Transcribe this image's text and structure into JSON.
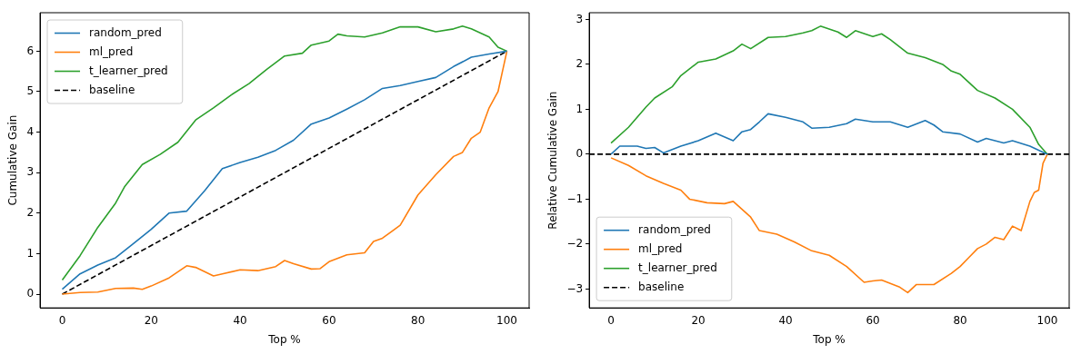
{
  "chart_data": [
    {
      "type": "line",
      "xlabel": "Top %",
      "ylabel": "Cumulative Gain",
      "xlim": [
        -5,
        105
      ],
      "ylim": [
        -0.34,
        6.95
      ],
      "xticks": [
        0,
        20,
        40,
        60,
        80,
        100
      ],
      "yticks": [
        0,
        1,
        2,
        3,
        4,
        5,
        6
      ],
      "grid": false,
      "legend": "top left",
      "marker": "none",
      "series": [
        {
          "name": "random_pred",
          "color": "#1f77b4",
          "x": [
            0,
            4,
            8,
            12,
            16,
            20,
            24,
            28,
            32,
            36,
            40,
            44,
            48,
            52,
            56,
            60,
            64,
            68,
            72,
            76,
            80,
            84,
            88,
            92,
            96,
            100
          ],
          "values": [
            0.12,
            0.5,
            0.72,
            0.9,
            1.25,
            1.6,
            2.0,
            2.05,
            2.55,
            3.1,
            3.25,
            3.38,
            3.55,
            3.8,
            4.2,
            4.35,
            4.57,
            4.8,
            5.08,
            5.15,
            5.25,
            5.35,
            5.62,
            5.85,
            5.93,
            6.0
          ]
        },
        {
          "name": "ml_pred",
          "color": "#ff7f0e",
          "x": [
            0,
            4,
            8,
            12,
            16,
            18,
            20,
            24,
            28,
            30,
            34,
            36,
            40,
            44,
            48,
            50,
            52,
            56,
            58,
            60,
            64,
            68,
            70,
            72,
            76,
            80,
            84,
            88,
            90,
            92,
            94,
            96,
            98,
            99,
            100
          ],
          "values": [
            0.0,
            0.04,
            0.05,
            0.14,
            0.15,
            0.12,
            0.2,
            0.4,
            0.7,
            0.66,
            0.45,
            0.5,
            0.6,
            0.58,
            0.68,
            0.83,
            0.75,
            0.62,
            0.63,
            0.8,
            0.97,
            1.02,
            1.3,
            1.38,
            1.7,
            2.45,
            2.95,
            3.4,
            3.5,
            3.85,
            4.0,
            4.6,
            5.0,
            5.5,
            6.0
          ]
        },
        {
          "name": "t_learner_pred",
          "color": "#2ca02c",
          "x": [
            0,
            4,
            8,
            12,
            14,
            18,
            22,
            26,
            30,
            34,
            38,
            42,
            46,
            50,
            54,
            56,
            60,
            62,
            64,
            68,
            72,
            76,
            80,
            84,
            88,
            90,
            92,
            96,
            98,
            100
          ],
          "values": [
            0.35,
            0.95,
            1.65,
            2.25,
            2.65,
            3.2,
            3.45,
            3.75,
            4.3,
            4.6,
            4.92,
            5.2,
            5.55,
            5.88,
            5.95,
            6.15,
            6.25,
            6.42,
            6.38,
            6.35,
            6.45,
            6.6,
            6.6,
            6.48,
            6.55,
            6.62,
            6.55,
            6.35,
            6.1,
            6.0
          ]
        },
        {
          "name": "baseline",
          "color": "#000000",
          "line_style": "dashed",
          "x": [
            0,
            100
          ],
          "values": [
            0,
            6
          ]
        }
      ]
    },
    {
      "type": "line",
      "xlabel": "Top %",
      "ylabel": "Relative Cumulative Gain",
      "xlim": [
        -5,
        105
      ],
      "ylim": [
        -3.42,
        3.15
      ],
      "xticks": [
        0,
        20,
        40,
        60,
        80,
        100
      ],
      "yticks": [
        -3,
        -2,
        -1,
        0,
        1,
        2,
        3
      ],
      "grid": false,
      "legend": "bottom left",
      "marker": "none",
      "series": [
        {
          "name": "random_pred",
          "color": "#1f77b4",
          "x": [
            0,
            2,
            6,
            8,
            10,
            12,
            16,
            20,
            24,
            28,
            30,
            32,
            34,
            36,
            40,
            44,
            46,
            50,
            54,
            56,
            60,
            64,
            68,
            72,
            74,
            76,
            80,
            84,
            86,
            90,
            92,
            96,
            100
          ],
          "values": [
            0.0,
            0.18,
            0.18,
            0.13,
            0.15,
            0.03,
            0.18,
            0.3,
            0.47,
            0.3,
            0.5,
            0.55,
            0.72,
            0.9,
            0.82,
            0.72,
            0.58,
            0.6,
            0.68,
            0.78,
            0.72,
            0.72,
            0.6,
            0.75,
            0.65,
            0.5,
            0.45,
            0.27,
            0.35,
            0.25,
            0.3,
            0.18,
            0.0
          ]
        },
        {
          "name": "ml_pred",
          "color": "#ff7f0e",
          "x": [
            0,
            4,
            8,
            12,
            16,
            18,
            22,
            26,
            28,
            32,
            34,
            38,
            42,
            46,
            50,
            54,
            58,
            60,
            62,
            66,
            68,
            70,
            74,
            78,
            80,
            82,
            84,
            86,
            88,
            90,
            92,
            94,
            96,
            97,
            98,
            99,
            100
          ],
          "values": [
            -0.08,
            -0.25,
            -0.48,
            -0.65,
            -0.8,
            -1.0,
            -1.08,
            -1.1,
            -1.05,
            -1.4,
            -1.7,
            -1.78,
            -1.95,
            -2.15,
            -2.25,
            -2.5,
            -2.85,
            -2.82,
            -2.8,
            -2.95,
            -3.08,
            -2.9,
            -2.9,
            -2.65,
            -2.5,
            -2.3,
            -2.1,
            -2.0,
            -1.85,
            -1.9,
            -1.6,
            -1.7,
            -1.05,
            -0.85,
            -0.8,
            -0.2,
            0.0
          ]
        },
        {
          "name": "t_learner_pred",
          "color": "#2ca02c",
          "x": [
            0,
            4,
            8,
            10,
            14,
            16,
            20,
            24,
            28,
            30,
            32,
            36,
            40,
            44,
            46,
            48,
            52,
            54,
            56,
            60,
            62,
            64,
            68,
            72,
            76,
            78,
            80,
            84,
            88,
            92,
            96,
            98,
            100
          ],
          "values": [
            0.25,
            0.6,
            1.05,
            1.25,
            1.5,
            1.75,
            2.05,
            2.12,
            2.3,
            2.45,
            2.35,
            2.6,
            2.62,
            2.7,
            2.75,
            2.85,
            2.72,
            2.6,
            2.75,
            2.62,
            2.68,
            2.55,
            2.25,
            2.15,
            2.0,
            1.85,
            1.78,
            1.42,
            1.25,
            1.0,
            0.6,
            0.22,
            0.0
          ]
        },
        {
          "name": "baseline",
          "color": "#000000",
          "line_style": "dashed",
          "x": [
            -5,
            105
          ],
          "values": [
            0,
            0
          ]
        }
      ]
    }
  ]
}
